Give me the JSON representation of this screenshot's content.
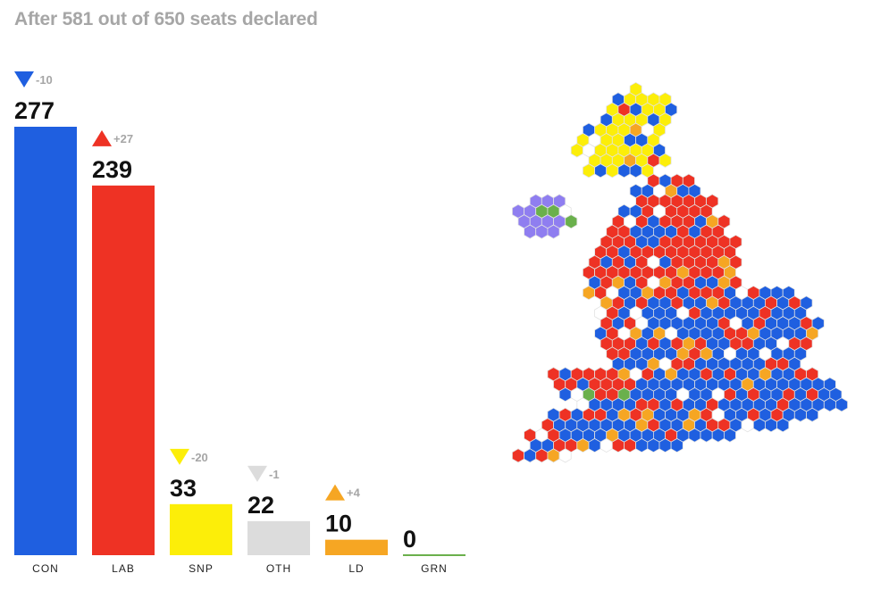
{
  "header": {
    "title": "After 581 out of 650 seats declared"
  },
  "chart_data": {
    "type": "bar",
    "categories": [
      "CON",
      "LAB",
      "SNP",
      "OTH",
      "LD",
      "GRN"
    ],
    "values": [
      277,
      239,
      33,
      22,
      10,
      0
    ],
    "changes": [
      "-10",
      "+27",
      "-20",
      "-1",
      "+4",
      ""
    ],
    "change_direction": [
      "down",
      "up",
      "down",
      "down",
      "up",
      "none"
    ],
    "colors": [
      "#1f5fe0",
      "#ee3224",
      "#fcee09",
      "#dcdcdc",
      "#f6a623",
      "#6ab04c"
    ],
    "ylim": [
      0,
      277
    ],
    "xlabel": "",
    "ylabel": ""
  },
  "map": {
    "description_colors": {
      "con": "#1f5fe0",
      "lab": "#ee3224",
      "snp": "#fcee09",
      "ld": "#f6a623",
      "pc": "#6ab04c",
      "ni": "#8f7ef0",
      "other": "#ffffff"
    }
  }
}
